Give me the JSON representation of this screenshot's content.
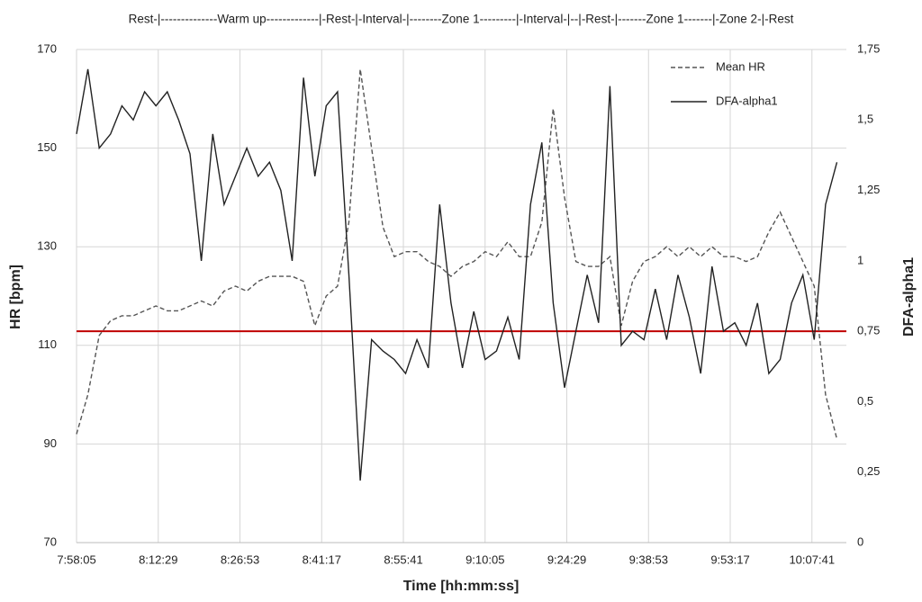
{
  "chart_data": {
    "type": "line",
    "annotation": "Rest-|--------------Warm up-------------|-Rest-|-Interval-|--------Zone 1---------|-Interval-|--|-Rest-|-------Zone 1-------|-Zone 2-|-Rest",
    "xlabel": "Time [hh:mm:ss]",
    "ylabel": "HR [bpm]",
    "y2label": "DFA-alpha1",
    "x": [
      "7:58:05",
      "8:00:05",
      "8:02:05",
      "8:04:05",
      "8:06:05",
      "8:08:05",
      "8:10:05",
      "8:12:05",
      "8:14:05",
      "8:16:05",
      "8:18:05",
      "8:20:05",
      "8:22:05",
      "8:24:05",
      "8:26:05",
      "8:28:05",
      "8:30:05",
      "8:32:05",
      "8:34:05",
      "8:36:05",
      "8:38:05",
      "8:40:05",
      "8:42:05",
      "8:44:05",
      "8:46:05",
      "8:48:05",
      "8:50:05",
      "8:52:05",
      "8:54:05",
      "8:56:05",
      "8:58:05",
      "9:00:05",
      "9:02:05",
      "9:04:05",
      "9:06:05",
      "9:08:05",
      "9:10:05",
      "9:12:05",
      "9:14:05",
      "9:16:05",
      "9:18:05",
      "9:20:05",
      "9:22:05",
      "9:24:05",
      "9:26:05",
      "9:28:05",
      "9:30:05",
      "9:32:05",
      "9:34:05",
      "9:36:05",
      "9:38:05",
      "9:40:05",
      "9:42:05",
      "9:44:05",
      "9:46:05",
      "9:48:05",
      "9:50:05",
      "9:52:05",
      "9:54:05",
      "9:56:05",
      "9:58:05",
      "10:00:05",
      "10:02:05",
      "10:04:05",
      "10:06:05",
      "10:08:05",
      "10:10:05",
      "10:12:05"
    ],
    "series": [
      {
        "name": "Mean HR",
        "color": "#555555",
        "dashed": true,
        "values": [
          92,
          100,
          112,
          115,
          116,
          116,
          117,
          118,
          117,
          117,
          118,
          119,
          118,
          121,
          122,
          121,
          123,
          124,
          124,
          124,
          123,
          114,
          120,
          122,
          135,
          166,
          150,
          134,
          128,
          129,
          129,
          127,
          126,
          124,
          126,
          127,
          129,
          128,
          131,
          128,
          128,
          135,
          158,
          140,
          127,
          126,
          126,
          128,
          114,
          123,
          127,
          128,
          130,
          128,
          130,
          128,
          130,
          128,
          128,
          127,
          128,
          133,
          137,
          132,
          127,
          122,
          100,
          91
        ]
      },
      {
        "name": "DFA-alpha1",
        "color": "#222222",
        "dashed": false,
        "axis": "y2",
        "values": [
          1.45,
          1.68,
          1.4,
          1.45,
          1.55,
          1.5,
          1.6,
          1.55,
          1.6,
          1.5,
          1.38,
          1.0,
          1.45,
          1.2,
          1.3,
          1.4,
          1.3,
          1.35,
          1.25,
          1.0,
          1.65,
          1.3,
          1.55,
          1.6,
          0.95,
          0.22,
          0.72,
          0.68,
          0.65,
          0.6,
          0.72,
          0.62,
          1.2,
          0.85,
          0.62,
          0.82,
          0.65,
          0.68,
          0.8,
          0.65,
          1.2,
          1.42,
          0.85,
          0.55,
          0.75,
          0.95,
          0.78,
          1.62,
          0.7,
          0.75,
          0.72,
          0.9,
          0.72,
          0.95,
          0.8,
          0.6,
          0.98,
          0.75,
          0.78,
          0.7,
          0.85,
          0.6,
          0.65,
          0.85,
          0.95,
          0.72,
          1.2,
          1.35
        ]
      }
    ],
    "reference_line": {
      "value": 0.75,
      "axis": "y2",
      "color": "#c00000"
    },
    "xlim": [
      "7:58:05",
      "10:13:45"
    ],
    "xticks": [
      "7:58:05",
      "8:12:29",
      "8:26:53",
      "8:41:17",
      "8:55:41",
      "9:10:05",
      "9:24:29",
      "9:38:53",
      "9:53:17",
      "10:07:41"
    ],
    "ylim": [
      70,
      170
    ],
    "yticks": [
      70,
      90,
      110,
      130,
      150,
      170
    ],
    "y2lim": [
      0,
      1.75
    ],
    "y2ticks": [
      0,
      {
        "value": 0.25,
        "label": "0,25"
      },
      {
        "value": 0.5,
        "label": "0,5"
      },
      {
        "value": 0.75,
        "label": "0,75"
      },
      1,
      {
        "value": 1.25,
        "label": "1,25"
      },
      {
        "value": 1.5,
        "label": "1,5"
      },
      {
        "value": 1.75,
        "label": "1,75"
      }
    ],
    "grid": true,
    "legend": "top-right"
  }
}
